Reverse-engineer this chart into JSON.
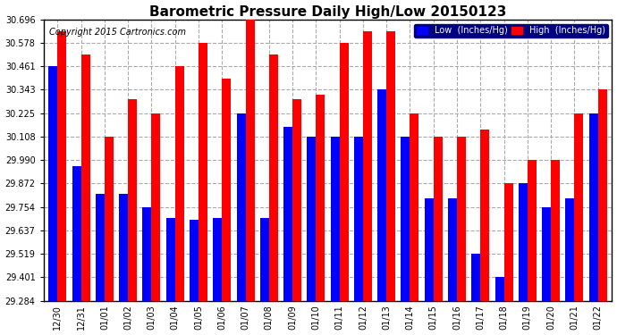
{
  "title": "Barometric Pressure Daily High/Low 20150123",
  "copyright": "Copyright 2015 Cartronics.com",
  "dates": [
    "12/30",
    "12/31",
    "01/01",
    "01/02",
    "01/03",
    "01/04",
    "01/05",
    "01/06",
    "01/07",
    "01/08",
    "01/09",
    "01/10",
    "01/11",
    "01/12",
    "01/13",
    "01/14",
    "01/15",
    "01/16",
    "01/17",
    "01/18",
    "01/19",
    "01/20",
    "01/21",
    "01/22"
  ],
  "low_values": [
    30.461,
    29.96,
    29.82,
    29.82,
    29.754,
    29.7,
    29.69,
    29.7,
    30.225,
    29.7,
    30.155,
    30.108,
    30.108,
    30.108,
    30.343,
    30.108,
    29.8,
    29.8,
    29.52,
    29.401,
    29.872,
    29.754,
    29.8,
    30.225
  ],
  "high_values": [
    30.637,
    30.52,
    30.108,
    30.295,
    30.225,
    30.461,
    30.578,
    30.4,
    30.696,
    30.52,
    30.295,
    30.32,
    30.578,
    30.637,
    30.637,
    30.225,
    30.108,
    30.108,
    30.145,
    29.872,
    29.99,
    29.99,
    30.225,
    30.343
  ],
  "low_color": "#0000ff",
  "high_color": "#ff0000",
  "bg_color": "#ffffff",
  "grid_color": "#aaaaaa",
  "ylim_min": 29.284,
  "ylim_max": 30.696,
  "yticks": [
    29.284,
    29.401,
    29.519,
    29.637,
    29.754,
    29.872,
    29.99,
    30.108,
    30.225,
    30.343,
    30.461,
    30.578,
    30.696
  ],
  "title_fontsize": 11,
  "copyright_fontsize": 7,
  "legend_low_label": "Low  (Inches/Hg)",
  "legend_high_label": "High  (Inches/Hg)",
  "bar_width": 0.38
}
